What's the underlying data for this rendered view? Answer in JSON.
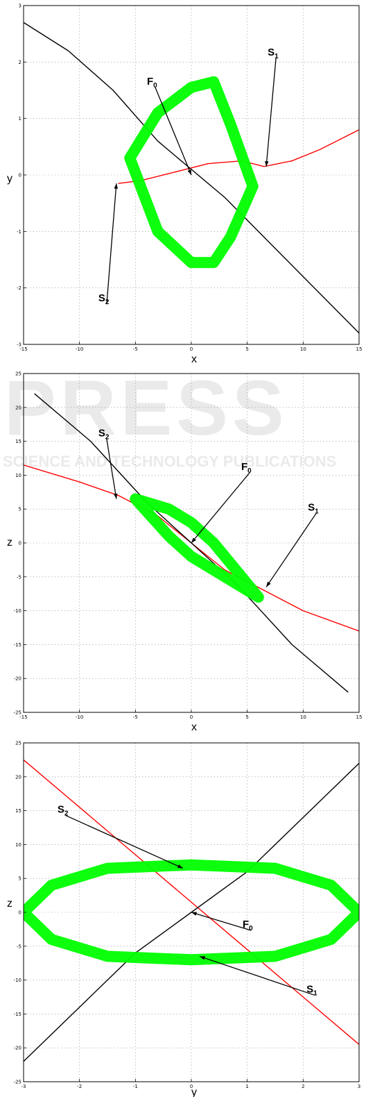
{
  "chart_data": [
    {
      "type": "line",
      "title": "",
      "xlabel": "x",
      "ylabel": "y",
      "xlim": [
        -15,
        15
      ],
      "ylim": [
        -3,
        3
      ],
      "xticks": [
        -15,
        -10,
        -5,
        0,
        5,
        10,
        15
      ],
      "yticks": [
        -3,
        -2,
        -1,
        0,
        1,
        2,
        3
      ],
      "grid": true,
      "annotations": [
        {
          "base": "F",
          "sub": "0",
          "x": 0,
          "y": 0
        },
        {
          "base": "S",
          "sub": "1",
          "x": 6.7,
          "y": 0.15
        },
        {
          "base": "S",
          "sub": "2",
          "x": -6.7,
          "y": -0.15
        }
      ],
      "series": [
        {
          "color": "#ff0000",
          "x": [
            -6.5,
            -4.5,
            -1.5,
            1.5,
            4.5,
            6.5,
            9,
            11.5,
            13.5,
            15
          ],
          "y": [
            -0.15,
            -0.1,
            0.05,
            0.2,
            0.25,
            0.15,
            0.25,
            0.45,
            0.65,
            0.8
          ]
        },
        {
          "color": "#000000",
          "x": [
            -15,
            -11,
            -7,
            -3,
            0,
            3,
            7,
            11,
            15
          ],
          "y": [
            2.7,
            2.2,
            1.5,
            0.6,
            0.1,
            -0.4,
            -1.2,
            -2.0,
            -2.8
          ]
        },
        {
          "color": "#00ff00",
          "x": [
            -5.5,
            -3,
            0,
            2,
            3.5,
            5.5,
            3.5,
            2,
            0,
            -3,
            -5.5
          ],
          "y": [
            0.3,
            1.1,
            1.55,
            1.65,
            0.9,
            -0.2,
            -1.1,
            -1.55,
            -1.55,
            -1.0,
            0.3
          ]
        }
      ]
    },
    {
      "type": "line",
      "title": "",
      "xlabel": "x",
      "ylabel": "z",
      "xlim": [
        -15,
        15
      ],
      "ylim": [
        -25,
        25
      ],
      "xticks": [
        -15,
        -10,
        -5,
        0,
        5,
        10,
        15
      ],
      "yticks": [
        -25,
        -20,
        -15,
        -10,
        -5,
        0,
        5,
        10,
        15,
        20,
        25
      ],
      "grid": true,
      "annotations": [
        {
          "base": "S",
          "sub": "2",
          "x": -6.7,
          "y": 6.5
        },
        {
          "base": "F",
          "sub": "0",
          "x": 0,
          "y": 0
        },
        {
          "base": "S",
          "sub": "1",
          "x": 6.7,
          "y": -6.5
        }
      ],
      "series": [
        {
          "color": "#ff0000",
          "x": [
            -15,
            -10,
            -6.5,
            -3,
            0,
            3,
            6.5,
            10,
            15
          ],
          "y": [
            11.5,
            9,
            7,
            4,
            0,
            -4,
            -7,
            -10,
            -13
          ]
        },
        {
          "color": "#000000",
          "x": [
            -14,
            -9,
            -4,
            0,
            4,
            9,
            14
          ],
          "y": [
            22,
            15,
            6,
            0,
            -6,
            -15,
            -22
          ]
        },
        {
          "color": "#00ff00",
          "x": [
            -5,
            -2,
            0,
            2,
            5,
            6,
            5,
            2,
            0,
            -2,
            -5
          ],
          "y": [
            6.5,
            5,
            3,
            0,
            -6,
            -8,
            -7,
            -4,
            -2,
            1,
            6.5
          ]
        }
      ]
    },
    {
      "type": "line",
      "title": "",
      "xlabel": "y",
      "ylabel": "z",
      "xlim": [
        -3,
        3
      ],
      "ylim": [
        -25,
        25
      ],
      "xticks": [
        -3,
        -2,
        -1,
        0,
        1,
        2,
        3
      ],
      "yticks": [
        -25,
        -20,
        -15,
        -10,
        -5,
        0,
        5,
        10,
        15,
        20,
        25
      ],
      "grid": true,
      "annotations": [
        {
          "base": "S",
          "sub": "2",
          "x": -0.15,
          "y": 6.5
        },
        {
          "base": "F",
          "sub": "0",
          "x": 0,
          "y": 0
        },
        {
          "base": "S",
          "sub": "1",
          "x": 0.15,
          "y": -6.5
        }
      ],
      "series": [
        {
          "color": "#ff0000",
          "x": [
            -3,
            -2,
            -1,
            0,
            1,
            2,
            3
          ],
          "y": [
            22.5,
            15.5,
            8.5,
            1.5,
            -5.5,
            -12.5,
            -19.5
          ]
        },
        {
          "color": "#000000",
          "x": [
            -3,
            -2,
            -1,
            0,
            1,
            2,
            3
          ],
          "y": [
            -22,
            -14,
            -6,
            0,
            6,
            14,
            22
          ]
        },
        {
          "color": "#00ff00",
          "x": [
            -3,
            -2.5,
            -1.5,
            0,
            1.5,
            2.5,
            3,
            2.5,
            1.5,
            0,
            -1.5,
            -2.5,
            -3
          ],
          "y": [
            0,
            4,
            6.5,
            7,
            6.5,
            4,
            0,
            -4,
            -6.5,
            -7,
            -6.5,
            -4,
            0
          ]
        }
      ]
    }
  ],
  "watermark": {
    "text": "PRESS",
    "subtext": "SCIENCE AND TECHNOLOGY PUBLICATIONS"
  }
}
